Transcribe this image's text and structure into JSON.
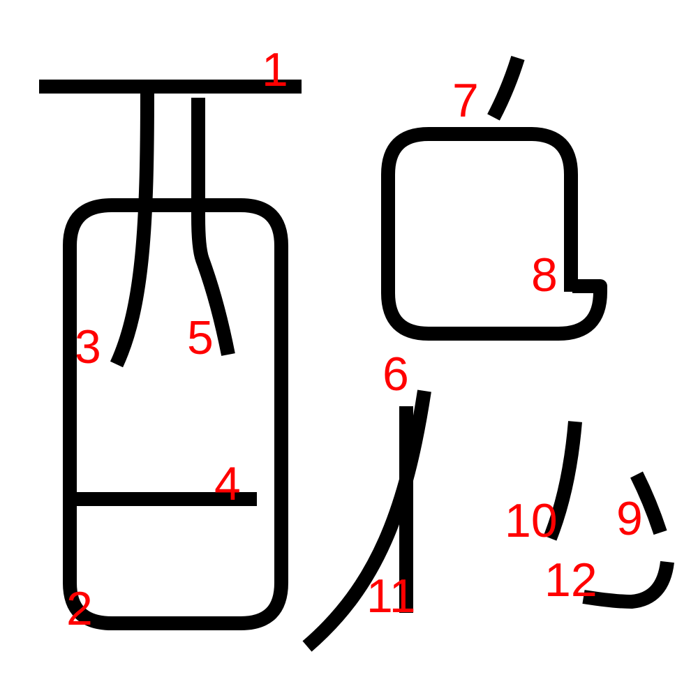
{
  "colors": {
    "stroke": "#000000",
    "label": "#ff0000",
    "background": "#ffffff"
  },
  "strokes": [
    {
      "id": "stroke-1",
      "number": "1"
    },
    {
      "id": "stroke-2",
      "number": "2"
    },
    {
      "id": "stroke-3",
      "number": "3"
    },
    {
      "id": "stroke-4",
      "number": "4"
    },
    {
      "id": "stroke-5",
      "number": "5"
    },
    {
      "id": "stroke-6",
      "number": "6"
    },
    {
      "id": "stroke-7",
      "number": "7"
    },
    {
      "id": "stroke-8",
      "number": "8"
    },
    {
      "id": "stroke-9",
      "number": "9"
    },
    {
      "id": "stroke-10",
      "number": "10"
    },
    {
      "id": "stroke-11",
      "number": "11"
    },
    {
      "id": "stroke-12",
      "number": "12"
    }
  ]
}
